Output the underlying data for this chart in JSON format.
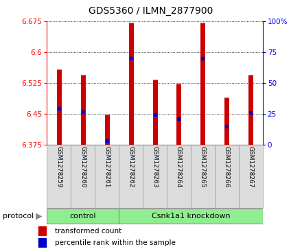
{
  "title": "GDS5360 / ILMN_2877900",
  "samples": [
    "GSM1278259",
    "GSM1278260",
    "GSM1278261",
    "GSM1278262",
    "GSM1278263",
    "GSM1278264",
    "GSM1278265",
    "GSM1278266",
    "GSM1278267"
  ],
  "transformed_count": [
    6.558,
    6.545,
    6.448,
    6.672,
    6.533,
    6.523,
    6.672,
    6.49,
    6.545
  ],
  "percentile_rank": [
    6.463,
    6.455,
    6.384,
    6.584,
    6.447,
    6.437,
    6.584,
    6.42,
    6.453
  ],
  "ymin": 6.375,
  "ymax": 6.675,
  "yticks": [
    6.375,
    6.45,
    6.525,
    6.6,
    6.675
  ],
  "right_yticks": [
    0,
    25,
    50,
    75,
    100
  ],
  "bar_color": "#CC0000",
  "dot_color": "#0000CC",
  "protocol_groups": [
    {
      "label": "control",
      "start": 0,
      "end": 3
    },
    {
      "label": "Csnk1a1 knockdown",
      "start": 3,
      "end": 9
    }
  ],
  "protocol_label": "protocol",
  "legend_items": [
    {
      "label": "transformed count",
      "color": "#CC0000"
    },
    {
      "label": "percentile rank within the sample",
      "color": "#0000CC"
    }
  ],
  "green_color": "#90EE90",
  "title_fontsize": 10,
  "tick_fontsize": 7.5,
  "label_fontsize": 6.5,
  "proto_fontsize": 8,
  "legend_fontsize": 7.5
}
